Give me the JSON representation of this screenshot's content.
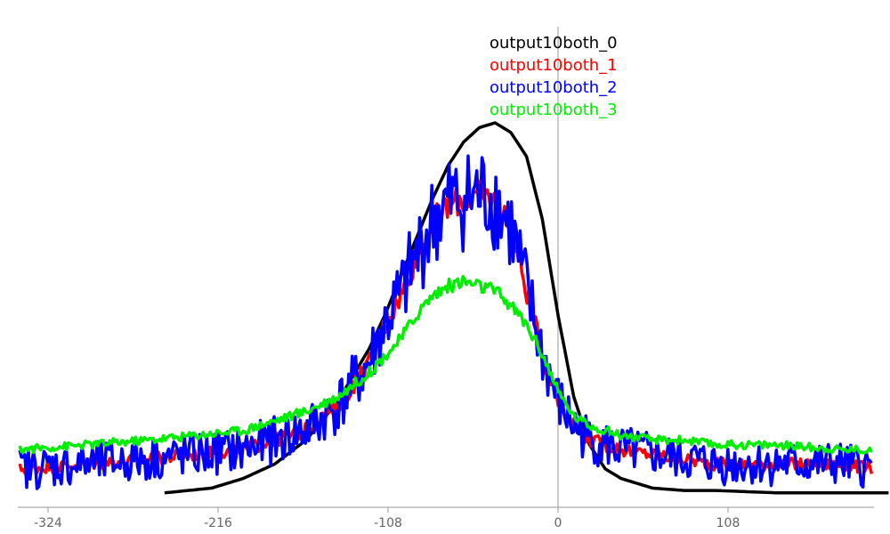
{
  "chart_data": {
    "type": "line",
    "title": "",
    "xlabel": "",
    "ylabel": "",
    "xlim": [
      -342,
      200
    ],
    "ylim": [
      0,
      1.0
    ],
    "grid": false,
    "legend_position": "top-center",
    "x_ticks": [
      "-324",
      "-216",
      "-108",
      "0",
      "108"
    ],
    "x_tick_values": [
      -324,
      -216,
      -108,
      0,
      108
    ],
    "series": [
      {
        "name": "output10both_0",
        "color": "#000000",
        "noise": 0,
        "x": [
          -250,
          -220,
          -200,
          -180,
          -160,
          -140,
          -120,
          -110,
          -100,
          -90,
          -80,
          -70,
          -60,
          -50,
          -40,
          -30,
          -20,
          -10,
          0,
          10,
          20,
          30,
          40,
          60,
          80,
          100,
          140,
          180,
          210
        ],
        "y": [
          0.03,
          0.04,
          0.06,
          0.09,
          0.14,
          0.22,
          0.33,
          0.4,
          0.48,
          0.56,
          0.64,
          0.71,
          0.76,
          0.79,
          0.8,
          0.78,
          0.73,
          0.6,
          0.4,
          0.23,
          0.13,
          0.08,
          0.06,
          0.04,
          0.035,
          0.035,
          0.03,
          0.03,
          0.03
        ]
      },
      {
        "name": "output10both_1",
        "color": "#ff0000",
        "noise": 0.02,
        "x": [
          -342,
          -300,
          -260,
          -230,
          -200,
          -180,
          -160,
          -140,
          -120,
          -110,
          -100,
          -90,
          -80,
          -70,
          -60,
          -50,
          -40,
          -30,
          -20,
          -10,
          0,
          10,
          20,
          30,
          40,
          60,
          80,
          100,
          140,
          180,
          200
        ],
        "y": [
          0.08,
          0.09,
          0.1,
          0.11,
          0.12,
          0.14,
          0.16,
          0.21,
          0.3,
          0.38,
          0.44,
          0.52,
          0.59,
          0.63,
          0.64,
          0.65,
          0.64,
          0.58,
          0.45,
          0.32,
          0.22,
          0.17,
          0.14,
          0.13,
          0.12,
          0.11,
          0.1,
          0.09,
          0.09,
          0.09,
          0.08
        ]
      },
      {
        "name": "output10both_2",
        "color": "#0000ff",
        "noise": 0.07,
        "x": [
          -342,
          -300,
          -260,
          -230,
          -200,
          -180,
          -160,
          -140,
          -120,
          -110,
          -100,
          -90,
          -80,
          -70,
          -60,
          -50,
          -40,
          -30,
          -20,
          -10,
          0,
          10,
          20,
          30,
          40,
          60,
          80,
          100,
          140,
          180,
          200
        ],
        "y": [
          0.08,
          0.09,
          0.1,
          0.11,
          0.12,
          0.14,
          0.16,
          0.21,
          0.3,
          0.38,
          0.44,
          0.52,
          0.59,
          0.63,
          0.64,
          0.65,
          0.64,
          0.58,
          0.45,
          0.32,
          0.22,
          0.17,
          0.14,
          0.13,
          0.12,
          0.11,
          0.1,
          0.09,
          0.09,
          0.09,
          0.08
        ]
      },
      {
        "name": "output10both_3",
        "color": "#00ee00",
        "noise": 0.012,
        "x": [
          -342,
          -300,
          -260,
          -230,
          -200,
          -180,
          -160,
          -140,
          -120,
          -100,
          -90,
          -80,
          -70,
          -60,
          -50,
          -40,
          -30,
          -20,
          -10,
          0,
          10,
          20,
          30,
          40,
          60,
          80,
          100,
          140,
          180,
          200
        ],
        "y": [
          0.12,
          0.13,
          0.14,
          0.15,
          0.16,
          0.18,
          0.2,
          0.23,
          0.28,
          0.35,
          0.4,
          0.44,
          0.46,
          0.47,
          0.46,
          0.45,
          0.42,
          0.38,
          0.32,
          0.24,
          0.19,
          0.17,
          0.16,
          0.15,
          0.14,
          0.14,
          0.13,
          0.13,
          0.12,
          0.12
        ]
      }
    ]
  }
}
